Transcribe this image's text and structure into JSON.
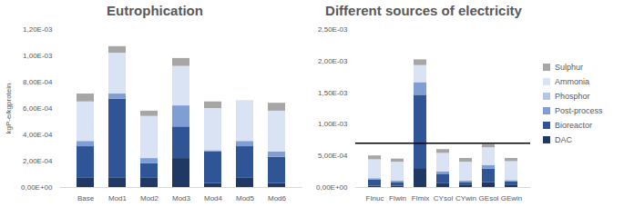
{
  "chart_data": [
    {
      "type": "bar",
      "title": "Eutrophication",
      "y_label": "kgP-e/kgprotein",
      "stacked": true,
      "grid": false,
      "categories": [
        "Base",
        "Mod1",
        "Mod2",
        "Mod3",
        "Mod4",
        "Mod5",
        "Mod6"
      ],
      "ylim": [
        0,
        0.0012
      ],
      "yticks": [
        {
          "value": 0,
          "label": "0,00E+00"
        },
        {
          "value": 0.0002,
          "label": "2,00E-04"
        },
        {
          "value": 0.0004,
          "label": "4,00E-04"
        },
        {
          "value": 0.0006,
          "label": "6,00E-04"
        },
        {
          "value": 0.0008,
          "label": "8,00E-04"
        },
        {
          "value": 0.001,
          "label": "1,00E-03"
        },
        {
          "value": 0.0012,
          "label": "1,20E-03"
        }
      ],
      "series": [
        {
          "name": "DAC",
          "color": "#1f3864",
          "values": [
            7e-05,
            7e-05,
            7e-05,
            0.00022,
            3e-05,
            7e-05,
            3e-05
          ]
        },
        {
          "name": "Bioreactor",
          "color": "#2f5597",
          "values": [
            0.00024,
            0.0006,
            0.00011,
            0.00024,
            0.00024,
            0.00024,
            0.0002
          ]
        },
        {
          "name": "Post-process",
          "color": "#7f9fd4",
          "values": [
            4e-05,
            4e-05,
            4e-05,
            0.00016,
            1e-05,
            4e-05,
            4e-05
          ]
        },
        {
          "name": "Phosphor",
          "color": "#b4c7e7",
          "values": [
            0,
            0,
            0,
            0,
            0,
            0,
            0
          ]
        },
        {
          "name": "Ammonia",
          "color": "#dae3f3",
          "values": [
            0.0003,
            0.00031,
            0.00032,
            0.0003,
            0.00032,
            0.00031,
            0.00031
          ]
        },
        {
          "name": "Sulphur",
          "color": "#a6a6a6",
          "values": [
            6e-05,
            5e-05,
            4e-05,
            6e-05,
            5e-05,
            0,
            6e-05
          ]
        }
      ]
    },
    {
      "type": "bar",
      "title": "Different sources of electricity",
      "stacked": true,
      "grid": false,
      "legend": "right",
      "categories": [
        "FInuc",
        "FIwin",
        "FImix",
        "CYsol",
        "CYwin",
        "GEsol",
        "GEwin"
      ],
      "ylim": [
        0,
        0.0025
      ],
      "yticks": [
        {
          "value": 0,
          "label": "0,00E+00"
        },
        {
          "value": 0.0005,
          "label": "5,00E-04"
        },
        {
          "value": 0.001,
          "label": "1,00E-03"
        },
        {
          "value": 0.0015,
          "label": "1,50E-03"
        },
        {
          "value": 0.002,
          "label": "2,00E-03"
        },
        {
          "value": 0.0025,
          "label": "2,50E-03"
        }
      ],
      "reference_line": 0.0007,
      "series": [
        {
          "name": "DAC",
          "color": "#1f3864",
          "values": [
            2e-05,
            2e-05,
            0.0003,
            6e-05,
            3e-05,
            8e-05,
            3e-05
          ]
        },
        {
          "name": "Bioreactor",
          "color": "#2f5597",
          "values": [
            0.0001,
            6e-05,
            0.00116,
            0.00015,
            5e-05,
            0.00021,
            6e-05
          ]
        },
        {
          "name": "Post-process",
          "color": "#7f9fd4",
          "values": [
            2e-05,
            2e-05,
            0.0002,
            4e-05,
            2e-05,
            6e-05,
            2e-05
          ]
        },
        {
          "name": "Phosphor",
          "color": "#b4c7e7",
          "values": [
            0,
            0,
            0,
            0,
            0,
            0,
            0
          ]
        },
        {
          "name": "Ammonia",
          "color": "#dae3f3",
          "values": [
            0.0003,
            0.0003,
            0.00027,
            0.00029,
            0.0003,
            0.00028,
            0.0003
          ]
        },
        {
          "name": "Sulphur",
          "color": "#a6a6a6",
          "values": [
            6e-05,
            5e-05,
            9e-05,
            6e-05,
            6e-05,
            5e-05,
            5e-05
          ]
        }
      ]
    }
  ]
}
